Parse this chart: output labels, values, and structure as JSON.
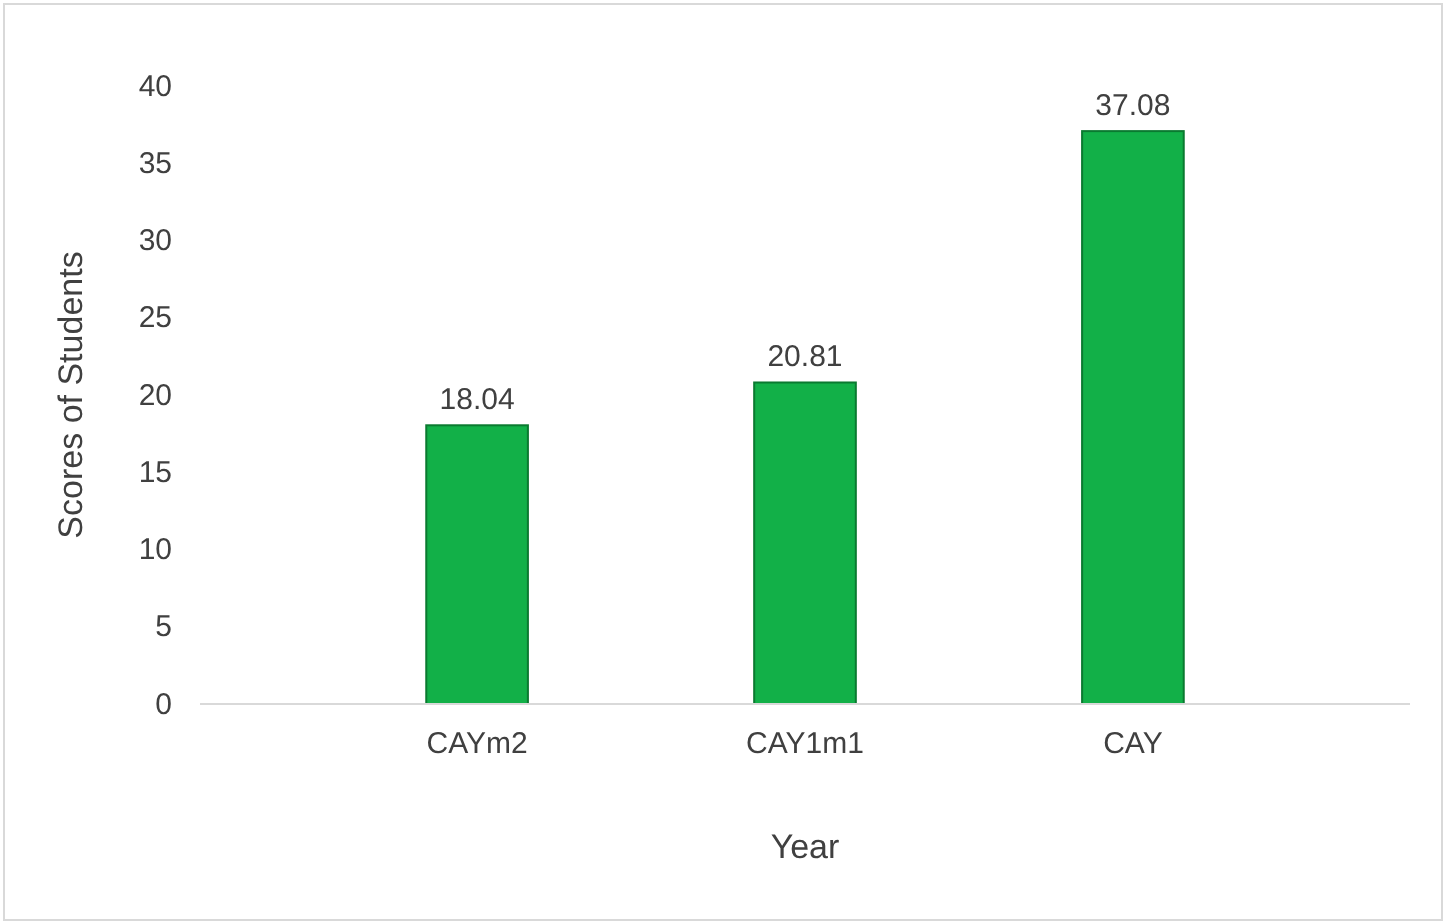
{
  "chart_data": {
    "type": "bar",
    "xlabel": "Year",
    "ylabel": "Scores of Students",
    "categories": [
      "CAYm2",
      "CAY1m1",
      "CAY"
    ],
    "values": [
      18.04,
      20.81,
      37.08
    ],
    "color": "#12b048",
    "ylim": [
      0,
      40
    ],
    "yticks": [
      0,
      5,
      10,
      15,
      20,
      25,
      30,
      35,
      40
    ],
    "grid": false,
    "data_labels": true
  }
}
